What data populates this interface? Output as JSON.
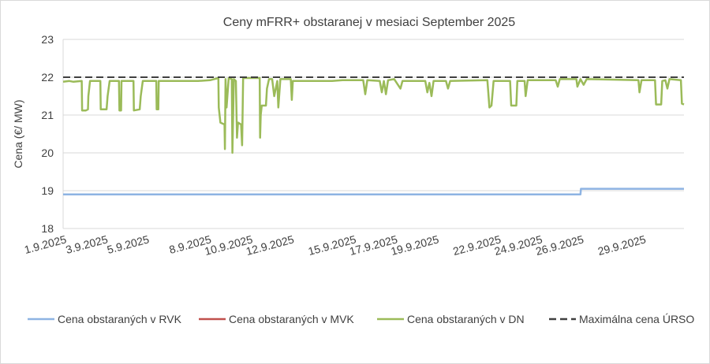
{
  "chart_data": {
    "type": "line",
    "title": "Ceny mFRR+ obstaranej v mesiaci September 2025",
    "xlabel": "",
    "ylabel": "Cena (€/ MW)",
    "ylim": [
      18,
      23
    ],
    "yticks": [
      "18",
      "19",
      "20",
      "21",
      "22",
      "23"
    ],
    "x_tick_labels": [
      "1.9.2025",
      "3.9.2025",
      "5.9.2025",
      "8.9.2025",
      "10.9.2025",
      "12.9.2025",
      "15.9.2025",
      "17.9.2025",
      "19.9.2025",
      "22.9.2025",
      "24.9.2025",
      "26.9.2025",
      "29.9.2025"
    ],
    "x_tick_days": [
      0,
      2,
      4,
      7,
      9,
      11,
      14,
      16,
      18,
      21,
      23,
      25,
      28
    ],
    "xlim_days": [
      0,
      30
    ],
    "grid": "horizontal",
    "legend_position": "bottom",
    "series": [
      {
        "name": "Cena obstaraných v RVK",
        "color": "#8eb4e3",
        "style": "solid",
        "points": [
          [
            0,
            18.9
          ],
          [
            25.0,
            18.9
          ],
          [
            25.02,
            19.05
          ],
          [
            30,
            19.05
          ]
        ]
      },
      {
        "name": "Cena obstaraných v MVK",
        "color": "#c0504d",
        "style": "solid",
        "points": []
      },
      {
        "name": "Cena obstaraných v DN",
        "color": "#9bbb59",
        "style": "solid",
        "points": [
          [
            0.0,
            21.88
          ],
          [
            0.3,
            21.9
          ],
          [
            0.5,
            21.88
          ],
          [
            0.9,
            21.9
          ],
          [
            0.92,
            21.12
          ],
          [
            1.1,
            21.12
          ],
          [
            1.2,
            21.15
          ],
          [
            1.22,
            21.5
          ],
          [
            1.3,
            21.9
          ],
          [
            1.8,
            21.9
          ],
          [
            1.82,
            21.15
          ],
          [
            2.1,
            21.15
          ],
          [
            2.15,
            21.5
          ],
          [
            2.25,
            21.9
          ],
          [
            2.7,
            21.9
          ],
          [
            2.72,
            21.12
          ],
          [
            2.8,
            21.12
          ],
          [
            2.82,
            21.9
          ],
          [
            3.4,
            21.9
          ],
          [
            3.42,
            21.12
          ],
          [
            3.7,
            21.15
          ],
          [
            3.75,
            21.5
          ],
          [
            3.85,
            21.9
          ],
          [
            4.5,
            21.9
          ],
          [
            4.52,
            21.15
          ],
          [
            4.6,
            21.15
          ],
          [
            4.62,
            21.9
          ],
          [
            6.5,
            21.9
          ],
          [
            6.52,
            21.9
          ],
          [
            7.1,
            21.92
          ],
          [
            7.3,
            21.95
          ],
          [
            7.5,
            21.98
          ],
          [
            7.52,
            21.2
          ],
          [
            7.6,
            20.8
          ],
          [
            7.8,
            20.75
          ],
          [
            7.82,
            20.1
          ],
          [
            7.85,
            21.95
          ],
          [
            7.9,
            21.2
          ],
          [
            8.0,
            21.98
          ],
          [
            8.15,
            21.95
          ],
          [
            8.18,
            20.0
          ],
          [
            8.25,
            21.95
          ],
          [
            8.35,
            21.9
          ],
          [
            8.4,
            20.4
          ],
          [
            8.45,
            20.8
          ],
          [
            8.6,
            20.75
          ],
          [
            8.65,
            20.2
          ],
          [
            8.7,
            21.98
          ],
          [
            9.5,
            21.98
          ],
          [
            9.52,
            20.4
          ],
          [
            9.55,
            21.0
          ],
          [
            9.6,
            21.25
          ],
          [
            9.8,
            21.25
          ],
          [
            9.85,
            21.7
          ],
          [
            9.95,
            21.95
          ],
          [
            10.1,
            21.95
          ],
          [
            10.2,
            21.5
          ],
          [
            10.35,
            21.9
          ],
          [
            10.4,
            21.2
          ],
          [
            10.5,
            21.95
          ],
          [
            11.0,
            21.95
          ],
          [
            11.05,
            21.4
          ],
          [
            11.1,
            21.9
          ],
          [
            11.3,
            21.9
          ],
          [
            13.0,
            21.9
          ],
          [
            13.5,
            21.92
          ],
          [
            14.5,
            21.92
          ],
          [
            14.6,
            21.55
          ],
          [
            14.7,
            21.92
          ],
          [
            15.3,
            21.9
          ],
          [
            15.4,
            21.6
          ],
          [
            15.5,
            21.9
          ],
          [
            15.6,
            21.55
          ],
          [
            15.7,
            21.92
          ],
          [
            16.0,
            21.95
          ],
          [
            16.3,
            21.7
          ],
          [
            16.4,
            21.9
          ],
          [
            17.5,
            21.9
          ],
          [
            17.6,
            21.6
          ],
          [
            17.7,
            21.85
          ],
          [
            17.8,
            21.5
          ],
          [
            17.9,
            21.9
          ],
          [
            18.5,
            21.9
          ],
          [
            18.6,
            21.7
          ],
          [
            18.7,
            21.9
          ],
          [
            20.5,
            21.92
          ],
          [
            20.6,
            21.2
          ],
          [
            20.7,
            21.25
          ],
          [
            20.8,
            21.9
          ],
          [
            21.6,
            21.9
          ],
          [
            21.65,
            21.25
          ],
          [
            21.9,
            21.25
          ],
          [
            21.95,
            21.9
          ],
          [
            22.3,
            21.9
          ],
          [
            22.35,
            21.5
          ],
          [
            22.45,
            21.92
          ],
          [
            23.8,
            21.92
          ],
          [
            23.9,
            21.75
          ],
          [
            24.0,
            21.95
          ],
          [
            24.8,
            21.95
          ],
          [
            24.85,
            21.75
          ],
          [
            25.0,
            21.95
          ],
          [
            25.15,
            21.8
          ],
          [
            25.3,
            21.95
          ],
          [
            27.8,
            21.92
          ],
          [
            27.85,
            21.6
          ],
          [
            27.95,
            21.92
          ],
          [
            28.6,
            21.92
          ],
          [
            28.65,
            21.28
          ],
          [
            28.9,
            21.28
          ],
          [
            28.95,
            21.9
          ],
          [
            29.1,
            21.92
          ],
          [
            29.2,
            21.7
          ],
          [
            29.3,
            21.95
          ],
          [
            29.85,
            21.92
          ],
          [
            29.9,
            21.3
          ],
          [
            30.0,
            21.28
          ]
        ]
      },
      {
        "name": "Maximálna cena ÚRSO",
        "color": "#404040",
        "style": "dashed",
        "points": [
          [
            0,
            22.0
          ],
          [
            30,
            22.0
          ]
        ]
      }
    ]
  }
}
